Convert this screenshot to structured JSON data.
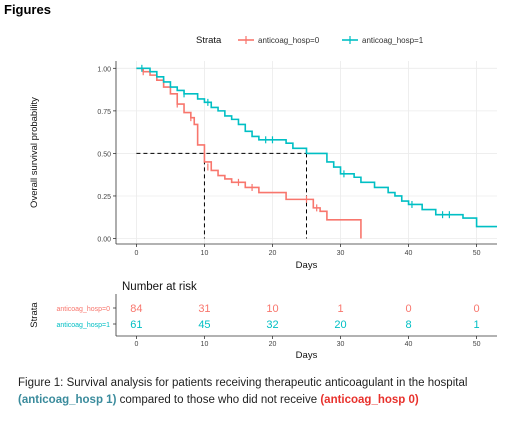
{
  "heading": "Figures",
  "caption": {
    "text_before": "Figure 1: Survival analysis for patients receiving therapeutic anticoagulant in the hospital ",
    "highlight_1": "(anticoag_hosp 1)",
    "text_middle": " compared to those who did not receive ",
    "highlight_2": "(anticoag_hosp 0)"
  },
  "colors": {
    "group0": "#f8766d",
    "group1": "#00bfc4",
    "median": "#000000",
    "grid": "#ebebeb"
  },
  "chart_data": [
    {
      "type": "line",
      "subtype": "kaplan-meier-step",
      "legend_title": "Strata",
      "legend_position": "top",
      "xlabel": "Days",
      "ylabel": "Overall survival probability",
      "xlim": [
        -3,
        53
      ],
      "ylim": [
        0,
        1
      ],
      "x_ticks": [
        0,
        10,
        20,
        30,
        40,
        50
      ],
      "y_ticks": [
        0,
        0.25,
        0.5,
        0.75,
        1.0
      ],
      "y_tick_labels": [
        "0.00",
        "0.25",
        "0.50",
        "0.75",
        "1.00"
      ],
      "grid": true,
      "series": [
        {
          "name": "anticoag_hosp=0",
          "color": "#f8766d",
          "steps": [
            [
              0,
              1.0
            ],
            [
              1,
              0.98
            ],
            [
              2,
              0.96
            ],
            [
              3,
              0.93
            ],
            [
              4,
              0.89
            ],
            [
              5,
              0.85
            ],
            [
              6,
              0.79
            ],
            [
              7,
              0.74
            ],
            [
              8,
              0.71
            ],
            [
              8.5,
              0.67
            ],
            [
              9,
              0.55
            ],
            [
              10,
              0.45
            ],
            [
              11,
              0.4
            ],
            [
              12,
              0.37
            ],
            [
              13,
              0.35
            ],
            [
              14,
              0.33
            ],
            [
              16,
              0.3
            ],
            [
              18,
              0.27
            ],
            [
              22,
              0.23
            ],
            [
              26,
              0.18
            ],
            [
              27,
              0.16
            ],
            [
              28,
              0.11
            ],
            [
              33,
              0.0
            ]
          ],
          "censored": [
            [
              1,
              0.98
            ],
            [
              6,
              0.79
            ],
            [
              8,
              0.71
            ],
            [
              10.5,
              0.42
            ],
            [
              15,
              0.33
            ],
            [
              17,
              0.3
            ],
            [
              25,
              0.23
            ],
            [
              26.5,
              0.18
            ]
          ]
        },
        {
          "name": "anticoag_hosp=1",
          "color": "#00bfc4",
          "steps": [
            [
              0,
              1.0
            ],
            [
              2,
              0.98
            ],
            [
              3,
              0.95
            ],
            [
              4,
              0.92
            ],
            [
              5,
              0.89
            ],
            [
              6,
              0.87
            ],
            [
              7,
              0.85
            ],
            [
              9,
              0.82
            ],
            [
              10,
              0.8
            ],
            [
              11,
              0.77
            ],
            [
              12,
              0.75
            ],
            [
              13,
              0.72
            ],
            [
              14,
              0.7
            ],
            [
              15,
              0.67
            ],
            [
              16,
              0.63
            ],
            [
              17,
              0.6
            ],
            [
              18,
              0.58
            ],
            [
              22,
              0.56
            ],
            [
              23,
              0.53
            ],
            [
              25,
              0.5
            ],
            [
              28,
              0.45
            ],
            [
              29,
              0.42
            ],
            [
              30,
              0.38
            ],
            [
              32,
              0.36
            ],
            [
              33,
              0.33
            ],
            [
              35,
              0.3
            ],
            [
              37,
              0.27
            ],
            [
              38,
              0.25
            ],
            [
              39,
              0.22
            ],
            [
              40,
              0.2
            ],
            [
              42,
              0.17
            ],
            [
              44,
              0.14
            ],
            [
              48,
              0.12
            ],
            [
              50,
              0.07
            ],
            [
              53,
              0.07
            ]
          ],
          "censored": [
            [
              0.8,
              1.0
            ],
            [
              7,
              0.85
            ],
            [
              10.5,
              0.8
            ],
            [
              19,
              0.58
            ],
            [
              20,
              0.58
            ],
            [
              30.5,
              0.38
            ],
            [
              40.5,
              0.2
            ],
            [
              45,
              0.14
            ],
            [
              46,
              0.14
            ]
          ]
        }
      ],
      "median_lines": [
        {
          "series": "anticoag_hosp=0",
          "x": 10,
          "y": 0.5
        },
        {
          "series": "anticoag_hosp=1",
          "x": 25,
          "y": 0.5
        }
      ]
    },
    {
      "type": "table",
      "title": "Number at risk",
      "ylabel": "Strata",
      "xlabel": "Days",
      "x": [
        0,
        10,
        20,
        30,
        40,
        50
      ],
      "row_labels": [
        "anticoag_hosp=0",
        "anticoag_hosp=1"
      ],
      "rows": [
        {
          "name": "anticoag_hosp=0",
          "color": "#f8766d",
          "values": [
            84,
            31,
            10,
            1,
            0,
            0
          ]
        },
        {
          "name": "anticoag_hosp=1",
          "color": "#00bfc4",
          "values": [
            61,
            45,
            32,
            20,
            8,
            1
          ]
        }
      ]
    }
  ]
}
